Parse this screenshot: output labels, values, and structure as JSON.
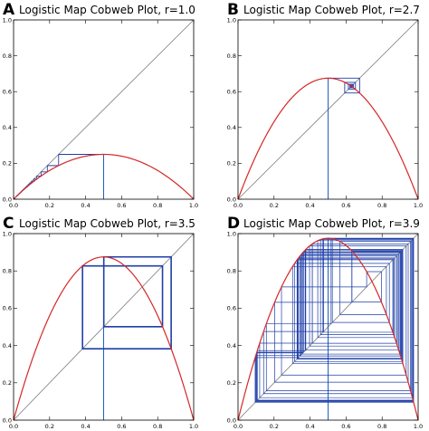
{
  "chart_data": [
    {
      "panel": "A",
      "type": "line",
      "title": "Logistic Map Cobweb Plot, r=1.0",
      "r": 1.0,
      "x0": 0.5,
      "iterations": 60,
      "xlim": [
        0,
        1
      ],
      "ylim": [
        0,
        1
      ],
      "xticks": [
        "0.0",
        "0.2",
        "0.4",
        "0.6",
        "0.8",
        "1.0"
      ],
      "yticks": [
        "0.0",
        "0.2",
        "0.4",
        "0.6",
        "0.8",
        "1.0"
      ],
      "series": [
        {
          "name": "",
          "kind": "identity y=x",
          "color": "#7a7a7a"
        },
        {
          "name": "",
          "kind": "logistic map y=r*x*(1-x)",
          "color": "#d62728"
        },
        {
          "name": "",
          "kind": "cobweb",
          "color": "#1f3fa8"
        }
      ]
    },
    {
      "panel": "B",
      "type": "line",
      "title": "Logistic Map Cobweb Plot, r=2.7",
      "r": 2.7,
      "x0": 0.5,
      "iterations": 60,
      "xlim": [
        0,
        1
      ],
      "ylim": [
        0,
        1
      ],
      "xticks": [
        "0.0",
        "0.2",
        "0.4",
        "0.6",
        "0.8",
        "1.0"
      ],
      "yticks": [
        "0.0",
        "0.2",
        "0.4",
        "0.6",
        "0.8",
        "1.0"
      ],
      "series": [
        {
          "name": "",
          "kind": "identity y=x",
          "color": "#7a7a7a"
        },
        {
          "name": "",
          "kind": "logistic map y=r*x*(1-x)",
          "color": "#d62728"
        },
        {
          "name": "",
          "kind": "cobweb",
          "color": "#1f3fa8"
        }
      ]
    },
    {
      "panel": "C",
      "type": "line",
      "title": "Logistic Map Cobweb Plot, r=3.5",
      "r": 3.5,
      "x0": 0.5,
      "iterations": 60,
      "xlim": [
        0,
        1
      ],
      "ylim": [
        0,
        1
      ],
      "xticks": [
        "0.0",
        "0.2",
        "0.4",
        "0.6",
        "0.8",
        "1.0"
      ],
      "yticks": [
        "0.0",
        "0.2",
        "0.4",
        "0.6",
        "0.8",
        "1.0"
      ],
      "series": [
        {
          "name": "",
          "kind": "identity y=x",
          "color": "#7a7a7a"
        },
        {
          "name": "",
          "kind": "logistic map y=r*x*(1-x)",
          "color": "#d62728"
        },
        {
          "name": "",
          "kind": "cobweb",
          "color": "#1f3fa8"
        }
      ]
    },
    {
      "panel": "D",
      "type": "line",
      "title": "Logistic Map Cobweb Plot, r=3.9",
      "r": 3.9,
      "x0": 0.5,
      "iterations": 60,
      "xlim": [
        0,
        1
      ],
      "ylim": [
        0,
        1
      ],
      "xticks": [
        "0.0",
        "0.2",
        "0.4",
        "0.6",
        "0.8",
        "1.0"
      ],
      "yticks": [
        "0.0",
        "0.2",
        "0.4",
        "0.6",
        "0.8",
        "1.0"
      ],
      "series": [
        {
          "name": "",
          "kind": "identity y=x",
          "color": "#7a7a7a"
        },
        {
          "name": "",
          "kind": "logistic map y=r*x*(1-x)",
          "color": "#d62728"
        },
        {
          "name": "",
          "kind": "cobweb",
          "color": "#1f3fa8"
        }
      ]
    }
  ]
}
